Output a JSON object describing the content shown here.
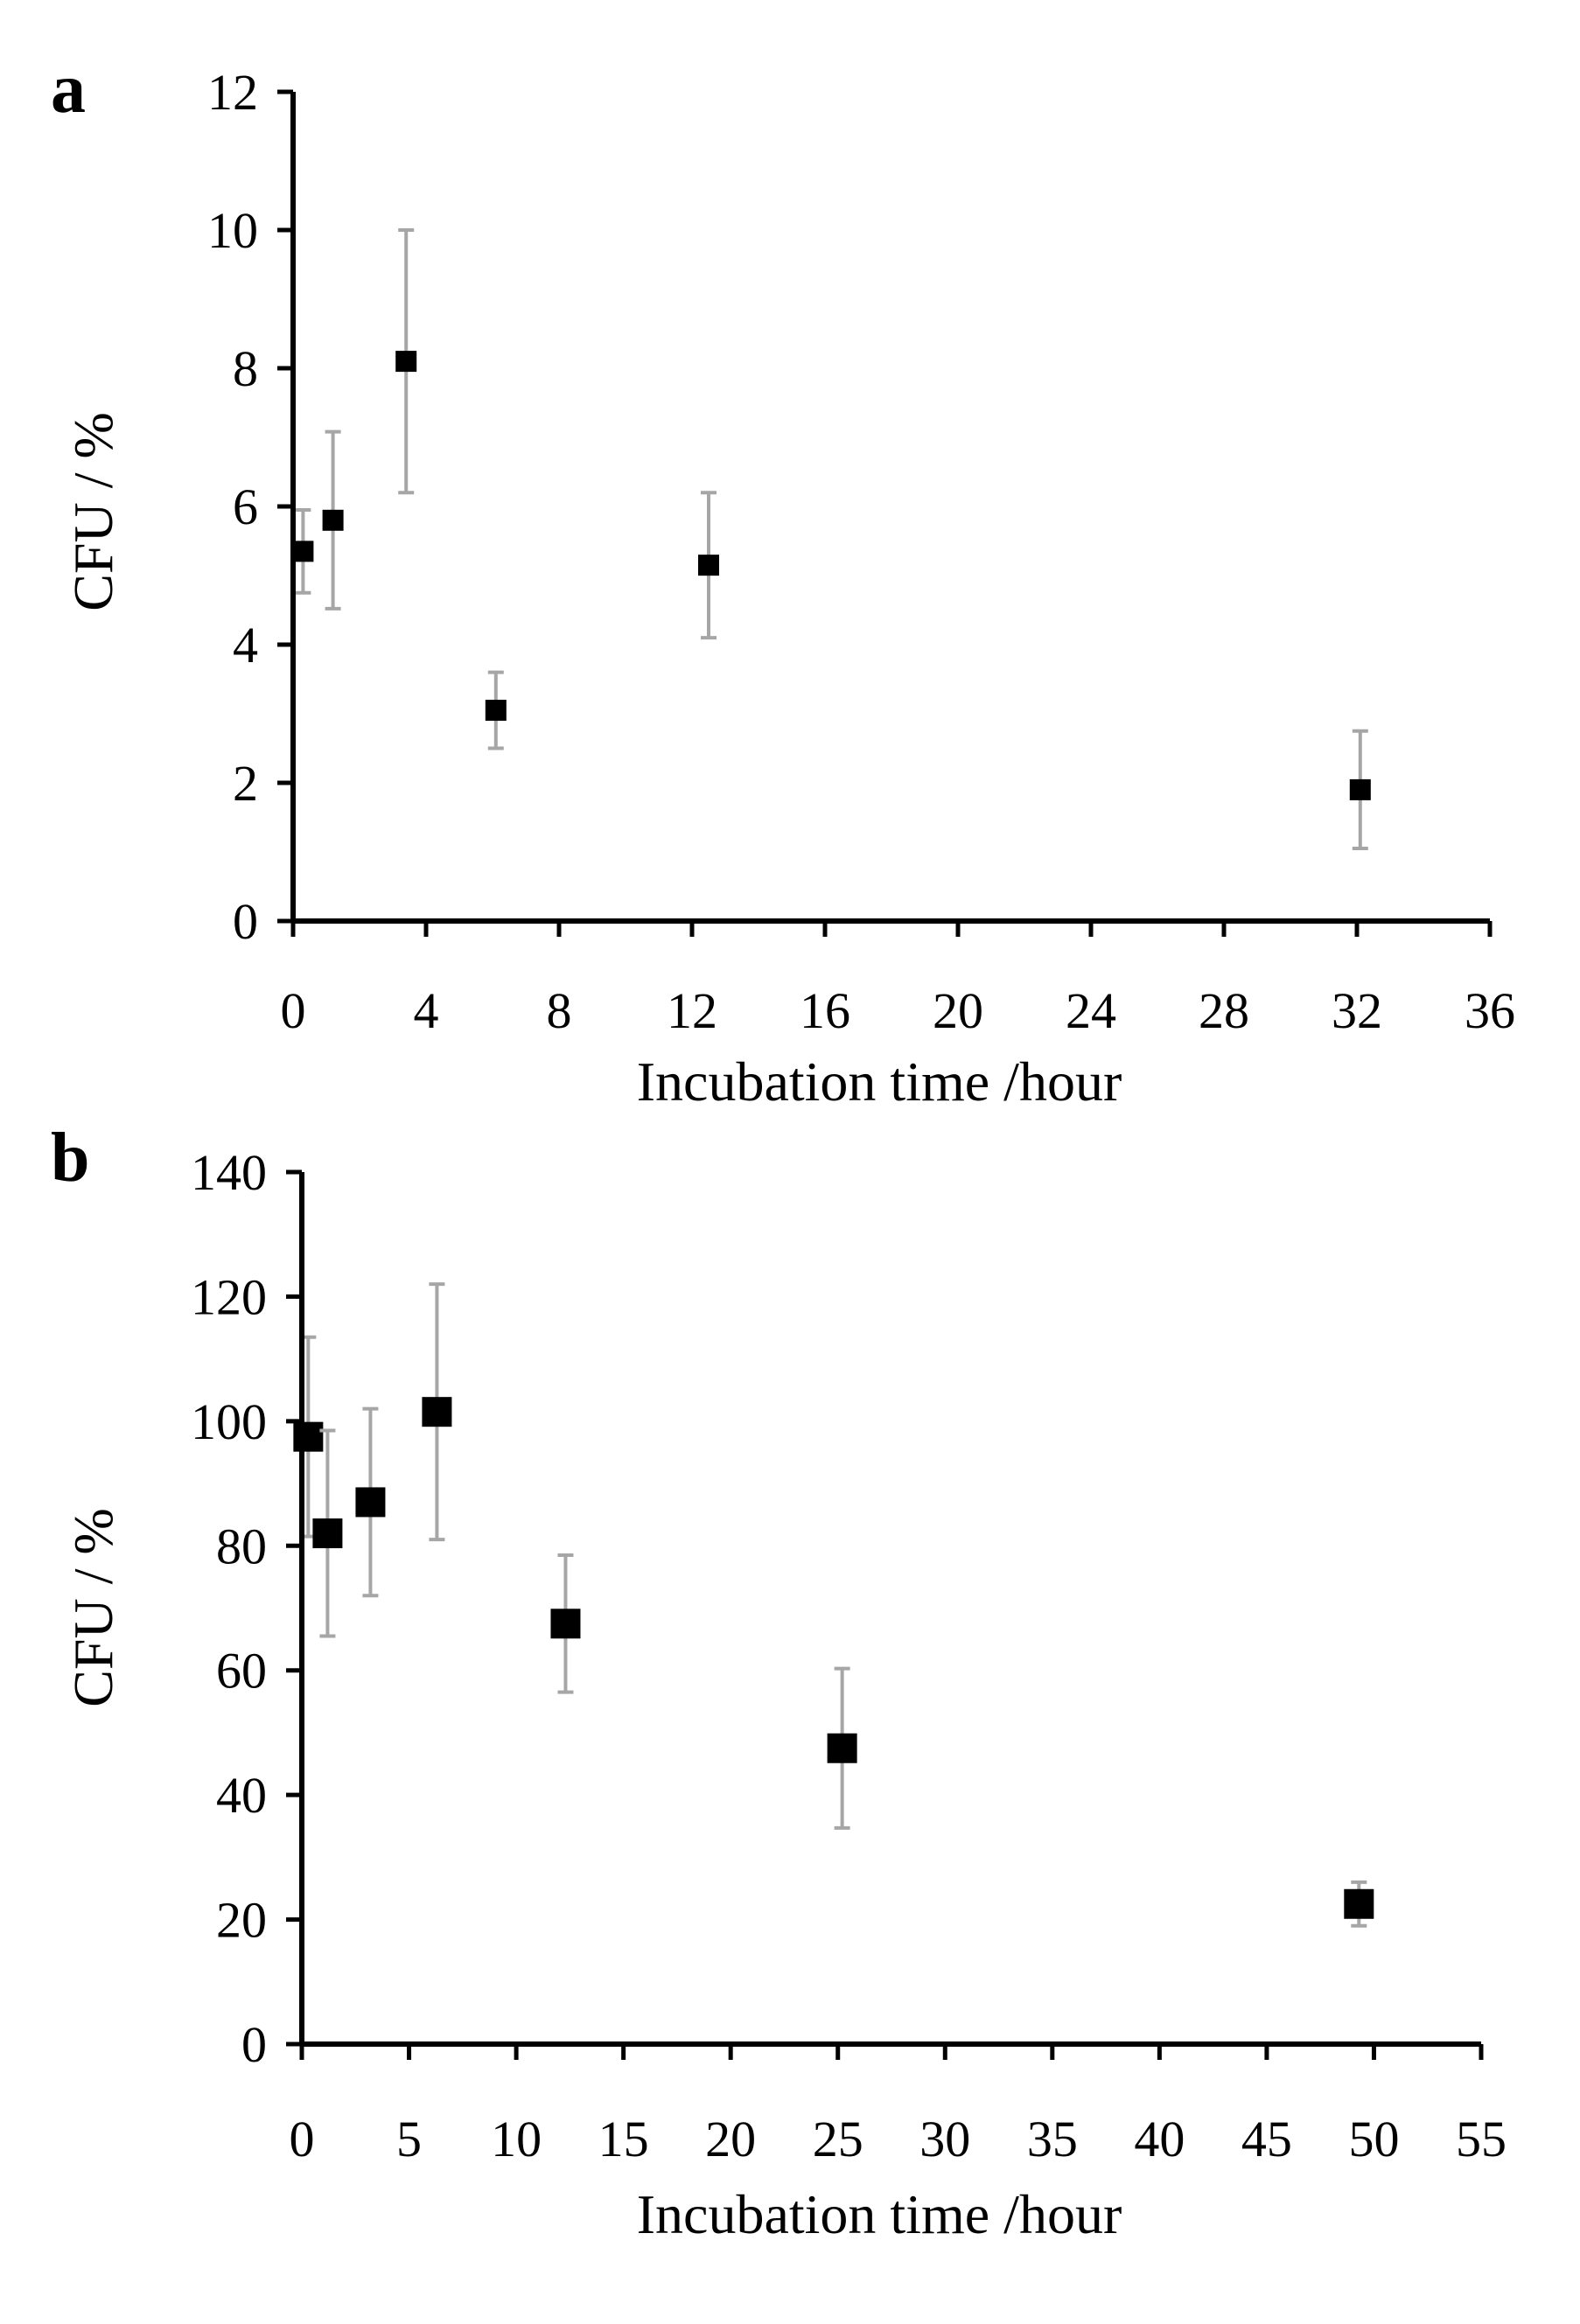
{
  "chart_data": [
    {
      "type": "scatter",
      "panel": "a",
      "xlabel": "Incubation time /hour",
      "ylabel": "CFU / %",
      "xlim": [
        0,
        36
      ],
      "ylim": [
        0,
        12
      ],
      "xticks": [
        0,
        4,
        8,
        12,
        16,
        20,
        24,
        28,
        32,
        36
      ],
      "yticks": [
        0,
        2,
        4,
        6,
        8,
        10,
        12
      ],
      "grid": false,
      "marker": "square",
      "marker_color": "#000000",
      "error_bar_color": "#a6a6a6",
      "points": [
        {
          "x": 0.3,
          "y": 5.35,
          "err": 0.6
        },
        {
          "x": 1.2,
          "y": 5.8,
          "err": 1.28
        },
        {
          "x": 3.4,
          "y": 8.1,
          "err": 1.9
        },
        {
          "x": 6.1,
          "y": 3.05,
          "err": 0.55
        },
        {
          "x": 12.5,
          "y": 5.15,
          "err": 1.05
        },
        {
          "x": 32.1,
          "y": 1.9,
          "err": 0.85
        }
      ]
    },
    {
      "type": "scatter",
      "panel": "b",
      "xlabel": "Incubation time /hour",
      "ylabel": "CFU / %",
      "xlim": [
        0,
        55
      ],
      "ylim": [
        0,
        140
      ],
      "xticks": [
        0,
        5,
        10,
        15,
        20,
        25,
        30,
        35,
        40,
        45,
        50,
        55
      ],
      "yticks": [
        0,
        20,
        40,
        60,
        80,
        100,
        120,
        140
      ],
      "grid": false,
      "marker": "square",
      "marker_color": "#000000",
      "error_bar_color": "#a6a6a6",
      "points": [
        {
          "x": 0.3,
          "y": 97.5,
          "err": 16
        },
        {
          "x": 1.2,
          "y": 82,
          "err": 16.5
        },
        {
          "x": 3.2,
          "y": 87,
          "err": 15
        },
        {
          "x": 6.3,
          "y": 101.5,
          "err": 20.5
        },
        {
          "x": 12.3,
          "y": 67.5,
          "err": 11
        },
        {
          "x": 25.2,
          "y": 47.5,
          "err": 12.8
        },
        {
          "x": 49.3,
          "y": 22.5,
          "err": 3.5
        }
      ]
    }
  ]
}
